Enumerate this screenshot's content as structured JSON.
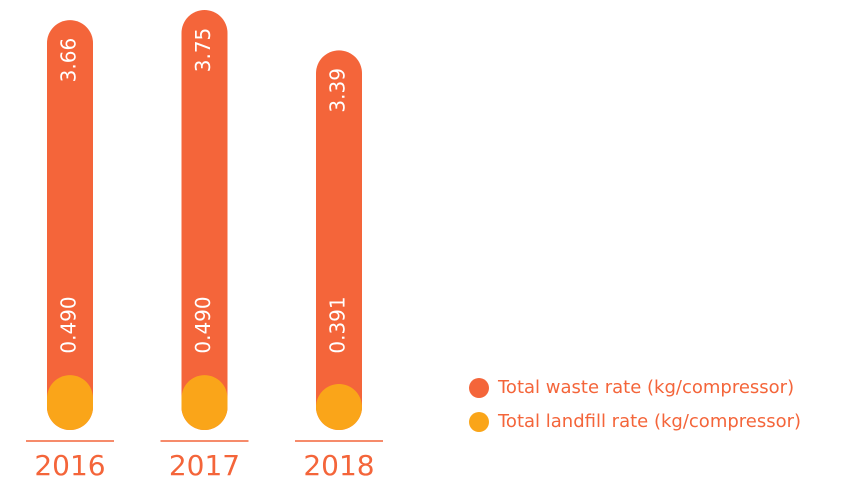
{
  "chart_data": {
    "type": "bar",
    "categories": [
      "2016",
      "2017",
      "2018"
    ],
    "series": [
      {
        "name": "Total waste rate (kg/compressor)",
        "color": "#f4653a",
        "values": [
          3.66,
          3.75,
          3.39
        ]
      },
      {
        "name": "Total landfill rate (kg/compressor)",
        "color": "#faa519",
        "values": [
          0.49,
          0.49,
          0.391
        ],
        "value_labels": [
          "0.490",
          "0.490",
          "0.391"
        ]
      }
    ]
  }
}
